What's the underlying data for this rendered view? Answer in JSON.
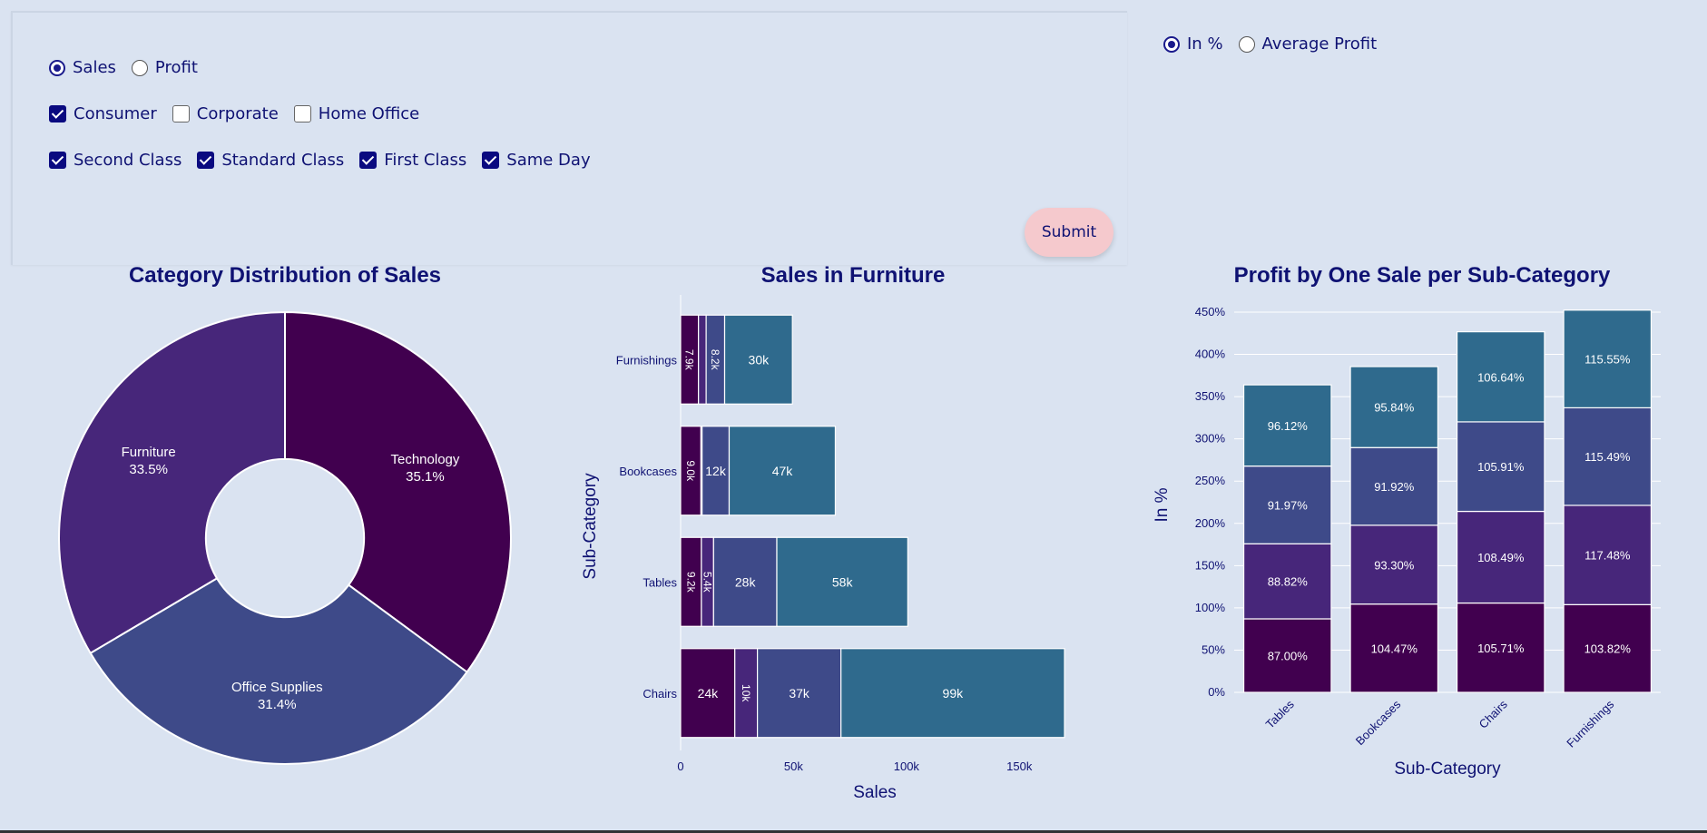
{
  "controls": {
    "measure": [
      {
        "label": "Sales",
        "checked": true
      },
      {
        "label": "Profit",
        "checked": false
      }
    ],
    "segments": [
      {
        "label": "Consumer",
        "checked": true
      },
      {
        "label": "Corporate",
        "checked": false
      },
      {
        "label": "Home Office",
        "checked": false
      }
    ],
    "ship_modes": [
      {
        "label": "Second Class",
        "checked": true
      },
      {
        "label": "Standard Class",
        "checked": true
      },
      {
        "label": "First Class",
        "checked": true
      },
      {
        "label": "Same Day",
        "checked": true
      }
    ],
    "submit_label": "Submit",
    "right_mode": [
      {
        "label": "In %",
        "checked": true
      },
      {
        "label": "Average Profit",
        "checked": false
      }
    ]
  },
  "colors": {
    "c1": "#41004f",
    "c2": "#47267a",
    "c3": "#3e4a89",
    "c4": "#2f6a8d",
    "axis_text": "#0f1273"
  },
  "chart_data": [
    {
      "type": "pie",
      "title": "Category Distribution of Sales",
      "hole": 0.35,
      "slices": [
        {
          "label": "Technology",
          "value": 35.1,
          "text": "35.1%",
          "color": "#41004f"
        },
        {
          "label": "Office Supplies",
          "value": 31.4,
          "text": "31.4%",
          "color": "#3e4a89"
        },
        {
          "label": "Furniture",
          "value": 33.5,
          "text": "33.5%",
          "color": "#47267a"
        }
      ]
    },
    {
      "type": "bar",
      "orientation": "horizontal",
      "stacked": true,
      "title": "Sales in Furniture",
      "xlabel": "Sales",
      "ylabel": "Sub-Category",
      "xlim": [
        0,
        172000
      ],
      "xticks": [
        0,
        50000,
        100000,
        150000
      ],
      "xtick_labels": [
        "0",
        "50k",
        "100k",
        "150k"
      ],
      "categories": [
        "Furnishings",
        "Bookcases",
        "Tables",
        "Chairs"
      ],
      "series": [
        {
          "color": "#41004f",
          "values": [
            7900,
            9000,
            9200,
            24000
          ],
          "labels": [
            "7.9k",
            "9.0k",
            "9.2k",
            "24k"
          ]
        },
        {
          "color": "#47267a",
          "values": [
            3400,
            500,
            5400,
            10000
          ],
          "labels": [
            "",
            "",
            "5.4k",
            "10k"
          ]
        },
        {
          "color": "#3e4a89",
          "values": [
            8200,
            12000,
            28000,
            37000
          ],
          "labels": [
            "8.2k",
            "12k",
            "28k",
            "37k"
          ]
        },
        {
          "color": "#2f6a8d",
          "values": [
            30000,
            47000,
            58000,
            99000
          ],
          "labels": [
            "30k",
            "47k",
            "58k",
            "99k"
          ]
        }
      ]
    },
    {
      "type": "bar",
      "stacked": true,
      "title": "Profit by One Sale per Sub-Category",
      "xlabel": "Sub-Category",
      "ylabel": "In %",
      "ylim": [
        0,
        465
      ],
      "yticks": [
        0,
        50,
        100,
        150,
        200,
        250,
        300,
        350,
        400,
        450
      ],
      "ytick_labels": [
        "0%",
        "50%",
        "100%",
        "150%",
        "200%",
        "250%",
        "300%",
        "350%",
        "400%",
        "450%"
      ],
      "categories": [
        "Tables",
        "Bookcases",
        "Chairs",
        "Furnishings"
      ],
      "series": [
        {
          "color": "#41004f",
          "values": [
            87.0,
            104.47,
            105.71,
            103.82
          ],
          "labels": [
            "87.00%",
            "104.47%",
            "105.71%",
            "103.82%"
          ]
        },
        {
          "color": "#47267a",
          "values": [
            88.82,
            93.3,
            108.49,
            117.48
          ],
          "labels": [
            "88.82%",
            "93.30%",
            "108.49%",
            "117.48%"
          ]
        },
        {
          "color": "#3e4a89",
          "values": [
            91.97,
            91.92,
            105.91,
            115.49
          ],
          "labels": [
            "91.97%",
            "91.92%",
            "105.91%",
            "115.49%"
          ]
        },
        {
          "color": "#2f6a8d",
          "values": [
            96.12,
            95.84,
            106.64,
            115.55
          ],
          "labels": [
            "96.12%",
            "95.84%",
            "106.64%",
            "115.55%"
          ]
        }
      ]
    }
  ]
}
